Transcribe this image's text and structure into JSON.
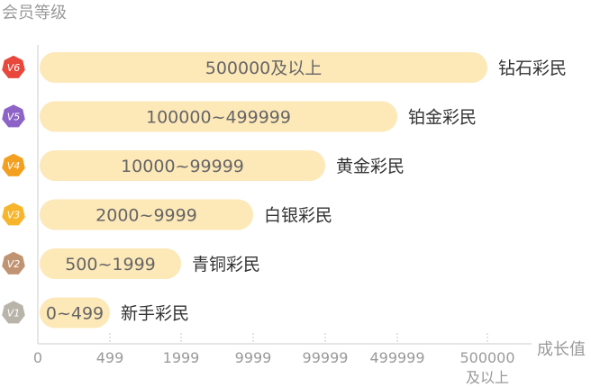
{
  "chart_data": {
    "type": "bar",
    "orientation": "horizontal",
    "title": "",
    "ylabel": "会员等级",
    "xlabel": "成长值",
    "x_ticks": [
      "0",
      "499",
      "1999",
      "9999",
      "99999",
      "499999",
      "500000\n及以上"
    ],
    "categories": [
      "V6",
      "V5",
      "V4",
      "V3",
      "V2",
      "V1"
    ],
    "bars": [
      {
        "badge": "V6",
        "level_name": "钻石彩民",
        "range_label": "500000及以上",
        "end_tick": 6,
        "badge_color": "#e8473b"
      },
      {
        "badge": "V5",
        "level_name": "铂金彩民",
        "range_label": "100000~499999",
        "end_tick": 5,
        "badge_color": "#8e63c8"
      },
      {
        "badge": "V4",
        "level_name": "黄金彩民",
        "range_label": "10000~99999",
        "end_tick": 4,
        "badge_color": "#f3a020"
      },
      {
        "badge": "V3",
        "level_name": "白银彩民",
        "range_label": "2000~9999",
        "end_tick": 3,
        "badge_color": "#f6b52a"
      },
      {
        "badge": "V2",
        "level_name": "青铜彩民",
        "range_label": "500~1999",
        "end_tick": 2,
        "badge_color": "#c09472"
      },
      {
        "badge": "V1",
        "level_name": "新手彩民",
        "range_label": "0~499",
        "end_tick": 1,
        "badge_color": "#b9b4a9"
      }
    ],
    "colors": {
      "bar": "#fde8b8",
      "bar_text": "#666666",
      "level_text": "#333333",
      "axis": "#cccccc",
      "tick_text": "#9a9a9a"
    },
    "grid": false,
    "legend": "none"
  }
}
